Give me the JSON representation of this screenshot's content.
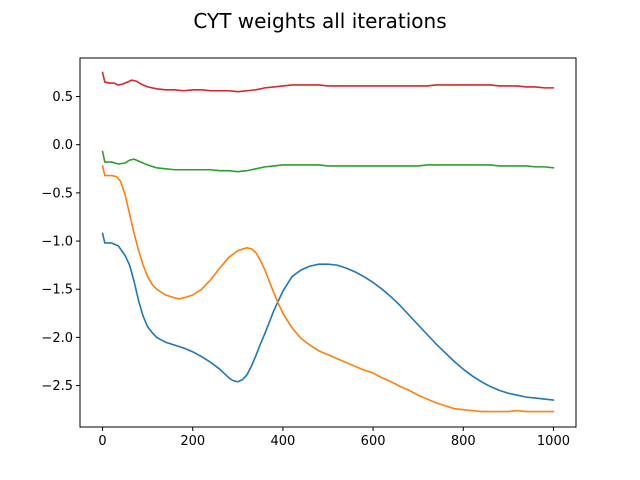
{
  "chart_data": {
    "type": "line",
    "title": "CYT weights all iterations",
    "xlabel": "",
    "ylabel": "",
    "xlim": [
      -50,
      1050
    ],
    "ylim": [
      -2.93,
      0.9
    ],
    "x_ticks": [
      0,
      200,
      400,
      600,
      800,
      1000
    ],
    "x_tick_labels": [
      "0",
      "200",
      "400",
      "600",
      "800",
      "1000"
    ],
    "y_ticks": [
      0.5,
      0.0,
      -0.5,
      -1.0,
      -1.5,
      -2.0,
      -2.5
    ],
    "y_tick_labels": [
      "0.5",
      "0.0",
      "−0.5",
      "−1.0",
      "−1.5",
      "−2.0",
      "−2.5"
    ],
    "grid": false,
    "legend": "none",
    "series": [
      {
        "color": "#1f77b4",
        "x": [
          0,
          5,
          20,
          35,
          50,
          60,
          70,
          80,
          90,
          100,
          110,
          120,
          140,
          160,
          180,
          200,
          220,
          240,
          260,
          280,
          290,
          300,
          310,
          320,
          330,
          340,
          350,
          360,
          380,
          400,
          420,
          440,
          460,
          480,
          500,
          520,
          540,
          560,
          580,
          600,
          620,
          640,
          660,
          680,
          700,
          720,
          740,
          760,
          780,
          800,
          820,
          840,
          860,
          880,
          900,
          920,
          940,
          960,
          980,
          1000
        ],
        "y": [
          -0.92,
          -1.02,
          -1.02,
          -1.05,
          -1.15,
          -1.25,
          -1.42,
          -1.62,
          -1.78,
          -1.89,
          -1.95,
          -2.0,
          -2.05,
          -2.08,
          -2.11,
          -2.15,
          -2.2,
          -2.26,
          -2.33,
          -2.42,
          -2.45,
          -2.46,
          -2.44,
          -2.39,
          -2.3,
          -2.19,
          -2.07,
          -1.96,
          -1.72,
          -1.52,
          -1.37,
          -1.3,
          -1.26,
          -1.24,
          -1.24,
          -1.25,
          -1.28,
          -1.32,
          -1.37,
          -1.43,
          -1.5,
          -1.58,
          -1.67,
          -1.77,
          -1.87,
          -1.97,
          -2.07,
          -2.16,
          -2.25,
          -2.33,
          -2.4,
          -2.46,
          -2.51,
          -2.55,
          -2.58,
          -2.6,
          -2.62,
          -2.63,
          -2.64,
          -2.65
        ]
      },
      {
        "color": "#ff7f0e",
        "x": [
          0,
          5,
          20,
          30,
          40,
          50,
          60,
          70,
          80,
          90,
          100,
          110,
          120,
          140,
          160,
          170,
          180,
          200,
          220,
          240,
          260,
          280,
          300,
          320,
          330,
          340,
          350,
          360,
          370,
          380,
          390,
          400,
          420,
          440,
          460,
          480,
          500,
          520,
          540,
          560,
          580,
          600,
          620,
          640,
          660,
          680,
          700,
          720,
          740,
          760,
          780,
          800,
          820,
          840,
          860,
          880,
          900,
          920,
          940,
          960,
          980,
          1000
        ],
        "y": [
          -0.22,
          -0.32,
          -0.32,
          -0.33,
          -0.38,
          -0.52,
          -0.72,
          -0.92,
          -1.1,
          -1.25,
          -1.37,
          -1.45,
          -1.5,
          -1.56,
          -1.59,
          -1.6,
          -1.59,
          -1.56,
          -1.5,
          -1.4,
          -1.28,
          -1.17,
          -1.1,
          -1.07,
          -1.08,
          -1.12,
          -1.2,
          -1.3,
          -1.42,
          -1.54,
          -1.65,
          -1.75,
          -1.9,
          -2.01,
          -2.08,
          -2.14,
          -2.18,
          -2.22,
          -2.26,
          -2.3,
          -2.34,
          -2.37,
          -2.42,
          -2.46,
          -2.51,
          -2.55,
          -2.6,
          -2.64,
          -2.68,
          -2.71,
          -2.74,
          -2.75,
          -2.76,
          -2.77,
          -2.77,
          -2.77,
          -2.77,
          -2.76,
          -2.77,
          -2.77,
          -2.77,
          -2.77
        ]
      },
      {
        "color": "#2ca02c",
        "x": [
          0,
          5,
          20,
          35,
          50,
          60,
          70,
          80,
          100,
          120,
          140,
          160,
          180,
          200,
          220,
          240,
          260,
          280,
          300,
          320,
          340,
          360,
          380,
          400,
          420,
          440,
          460,
          480,
          500,
          520,
          540,
          560,
          580,
          600,
          620,
          640,
          660,
          680,
          700,
          720,
          740,
          760,
          780,
          800,
          820,
          840,
          860,
          880,
          900,
          920,
          940,
          960,
          980,
          1000
        ],
        "y": [
          -0.07,
          -0.18,
          -0.18,
          -0.2,
          -0.19,
          -0.16,
          -0.15,
          -0.17,
          -0.21,
          -0.24,
          -0.25,
          -0.26,
          -0.26,
          -0.26,
          -0.26,
          -0.26,
          -0.27,
          -0.27,
          -0.28,
          -0.27,
          -0.25,
          -0.23,
          -0.22,
          -0.21,
          -0.21,
          -0.21,
          -0.21,
          -0.21,
          -0.22,
          -0.22,
          -0.22,
          -0.22,
          -0.22,
          -0.22,
          -0.22,
          -0.22,
          -0.22,
          -0.22,
          -0.22,
          -0.21,
          -0.21,
          -0.21,
          -0.21,
          -0.21,
          -0.21,
          -0.21,
          -0.21,
          -0.22,
          -0.22,
          -0.22,
          -0.22,
          -0.23,
          -0.23,
          -0.24
        ]
      },
      {
        "color": "#d62728",
        "x": [
          0,
          5,
          15,
          25,
          35,
          45,
          55,
          65,
          75,
          85,
          100,
          120,
          140,
          160,
          180,
          200,
          220,
          240,
          260,
          280,
          300,
          320,
          340,
          360,
          380,
          400,
          420,
          440,
          460,
          480,
          500,
          520,
          540,
          560,
          580,
          600,
          620,
          640,
          660,
          680,
          700,
          720,
          740,
          760,
          780,
          800,
          820,
          840,
          860,
          880,
          900,
          920,
          940,
          960,
          980,
          1000
        ],
        "y": [
          0.75,
          0.65,
          0.64,
          0.64,
          0.62,
          0.63,
          0.65,
          0.67,
          0.66,
          0.63,
          0.6,
          0.58,
          0.57,
          0.57,
          0.56,
          0.57,
          0.57,
          0.56,
          0.56,
          0.56,
          0.55,
          0.56,
          0.57,
          0.59,
          0.6,
          0.61,
          0.62,
          0.62,
          0.62,
          0.62,
          0.61,
          0.61,
          0.61,
          0.61,
          0.61,
          0.61,
          0.61,
          0.61,
          0.61,
          0.61,
          0.61,
          0.61,
          0.62,
          0.62,
          0.62,
          0.62,
          0.62,
          0.62,
          0.62,
          0.61,
          0.61,
          0.61,
          0.6,
          0.6,
          0.59,
          0.59
        ]
      }
    ]
  }
}
